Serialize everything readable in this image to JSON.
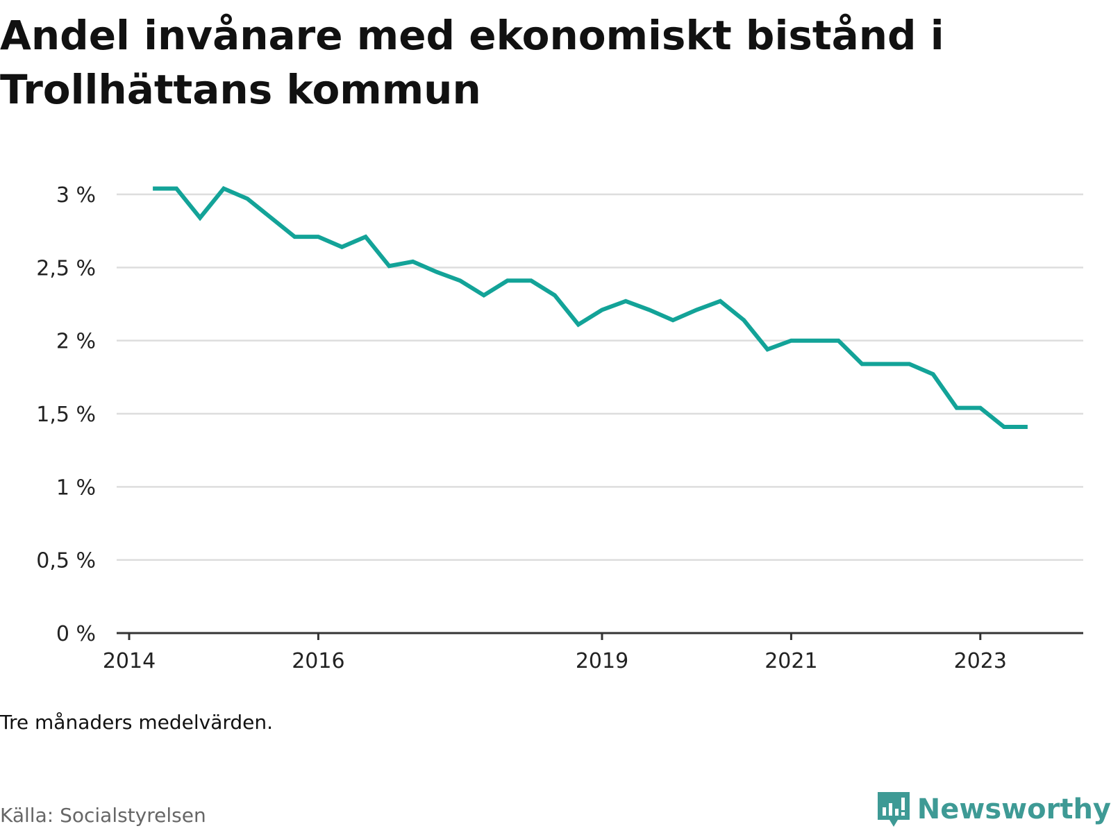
{
  "title": "Andel invånare med ekonomiskt bistånd i Trollhättans kommun",
  "note": "Tre månaders medelvärden.",
  "source": "Källa: Socialstyrelsen",
  "brand": {
    "name": "Newsworthy",
    "icon": "newsworthy-logo-icon",
    "color": "#3e9a95"
  },
  "colors": {
    "line": "#13a398",
    "grid": "#dddddd",
    "axis": "#333333"
  },
  "chart_data": {
    "type": "line",
    "title": "Andel invånare med ekonomiskt bistånd i Trollhättans kommun",
    "xlabel": "",
    "ylabel": "",
    "ylim": [
      0,
      3
    ],
    "grid": true,
    "y_ticks": [
      {
        "value": 0,
        "label": "0 %"
      },
      {
        "value": 0.5,
        "label": "0,5 %"
      },
      {
        "value": 1,
        "label": "1 %"
      },
      {
        "value": 1.5,
        "label": "1,5 %"
      },
      {
        "value": 2,
        "label": "2 %"
      },
      {
        "value": 2.5,
        "label": "2,5 %"
      },
      {
        "value": 3,
        "label": "3 %"
      }
    ],
    "x_ticks": [
      {
        "value": "2014-01",
        "label": "2014"
      },
      {
        "value": "2016-01",
        "label": "2016"
      },
      {
        "value": "2019-01",
        "label": "2019"
      },
      {
        "value": "2021-01",
        "label": "2021"
      },
      {
        "value": "2023-01",
        "label": "2023"
      }
    ],
    "series": [
      {
        "values": [
          {
            "x": "2014-04",
            "y": 3.04
          },
          {
            "x": "2014-07",
            "y": 3.04
          },
          {
            "x": "2014-10",
            "y": 2.84
          },
          {
            "x": "2015-01",
            "y": 3.04
          },
          {
            "x": "2015-04",
            "y": 2.97
          },
          {
            "x": "2015-07",
            "y": 2.84
          },
          {
            "x": "2015-10",
            "y": 2.71
          },
          {
            "x": "2016-01",
            "y": 2.71
          },
          {
            "x": "2016-04",
            "y": 2.64
          },
          {
            "x": "2016-07",
            "y": 2.71
          },
          {
            "x": "2016-10",
            "y": 2.51
          },
          {
            "x": "2017-01",
            "y": 2.54
          },
          {
            "x": "2017-04",
            "y": 2.47
          },
          {
            "x": "2017-07",
            "y": 2.41
          },
          {
            "x": "2017-10",
            "y": 2.31
          },
          {
            "x": "2018-01",
            "y": 2.41
          },
          {
            "x": "2018-04",
            "y": 2.41
          },
          {
            "x": "2018-07",
            "y": 2.31
          },
          {
            "x": "2018-10",
            "y": 2.11
          },
          {
            "x": "2019-01",
            "y": 2.21
          },
          {
            "x": "2019-04",
            "y": 2.27
          },
          {
            "x": "2019-07",
            "y": 2.21
          },
          {
            "x": "2019-10",
            "y": 2.14
          },
          {
            "x": "2020-01",
            "y": 2.21
          },
          {
            "x": "2020-04",
            "y": 2.27
          },
          {
            "x": "2020-07",
            "y": 2.14
          },
          {
            "x": "2020-10",
            "y": 1.94
          },
          {
            "x": "2021-01",
            "y": 2.0
          },
          {
            "x": "2021-04",
            "y": 2.0
          },
          {
            "x": "2021-07",
            "y": 2.0
          },
          {
            "x": "2021-10",
            "y": 1.84
          },
          {
            "x": "2022-01",
            "y": 1.84
          },
          {
            "x": "2022-04",
            "y": 1.84
          },
          {
            "x": "2022-07",
            "y": 1.77
          },
          {
            "x": "2022-10",
            "y": 1.54
          },
          {
            "x": "2023-01",
            "y": 1.54
          },
          {
            "x": "2023-04",
            "y": 1.41
          },
          {
            "x": "2023-07",
            "y": 1.41
          }
        ]
      }
    ]
  }
}
